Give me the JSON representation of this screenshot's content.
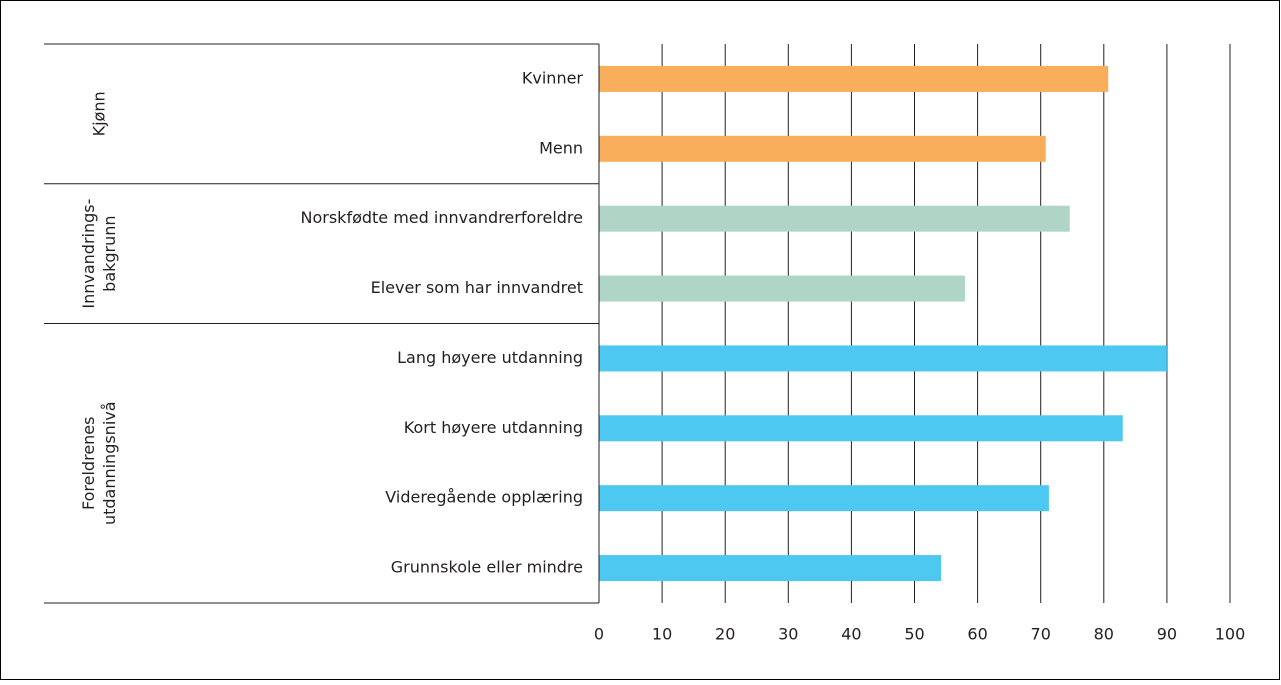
{
  "chart_data": {
    "type": "bar",
    "orientation": "horizontal",
    "groups": [
      {
        "label": [
          "Kjønn"
        ],
        "color": "#f9ae5b",
        "categories": [
          "Kvinner",
          "Menn"
        ],
        "values": [
          80.7,
          70.8
        ]
      },
      {
        "label": [
          "Innvandrings-",
          "bakgrunn"
        ],
        "color": "#aed5c6",
        "categories": [
          "Norskfødte med innvandrerforeldre",
          "Elever som har innvandret"
        ],
        "values": [
          74.6,
          58.0
        ]
      },
      {
        "label": [
          "Foreldrenes",
          "utdanningsnivå"
        ],
        "color": "#4dc8f0",
        "categories": [
          "Lang høyere utdanning",
          "Kort høyere utdanning",
          "Videregående opplæring",
          "Grunnskole eller mindre"
        ],
        "values": [
          90.0,
          83.0,
          71.3,
          54.2
        ]
      }
    ],
    "xlim": [
      0,
      100
    ],
    "xticks": [
      0,
      10,
      20,
      30,
      40,
      50,
      60,
      70,
      80,
      90,
      100
    ],
    "grid": true
  }
}
